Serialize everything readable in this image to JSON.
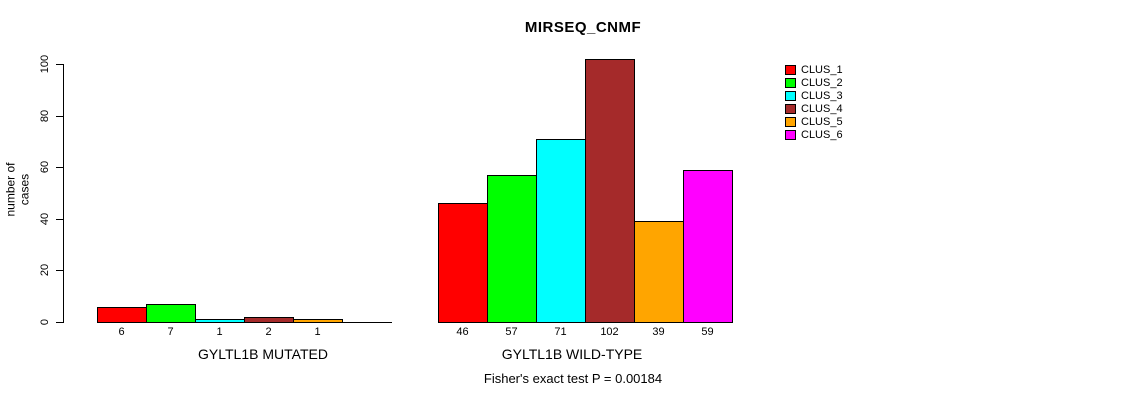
{
  "chart_data": {
    "type": "bar",
    "title": "MIRSEQ_CNMF",
    "ylabel": "number of cases",
    "ylim": [
      0,
      100
    ],
    "yticks": [
      0,
      20,
      40,
      60,
      80,
      100
    ],
    "grid": false,
    "legend_position": "right",
    "legend": [
      {
        "label": "CLUS_1",
        "color": "#FF0000"
      },
      {
        "label": "CLUS_2",
        "color": "#00FF00"
      },
      {
        "label": "CLUS_3",
        "color": "#00FFFF"
      },
      {
        "label": "CLUS_4",
        "color": "#A52A2A"
      },
      {
        "label": "CLUS_5",
        "color": "#FFA500"
      },
      {
        "label": "CLUS_6",
        "color": "#FF00FF"
      }
    ],
    "groups": [
      {
        "label": "GYLTL1B MUTATED",
        "values": [
          6,
          7,
          1,
          2,
          1,
          0
        ],
        "bar_labels": [
          "6",
          "7",
          "1",
          "2",
          "1",
          ""
        ]
      },
      {
        "label": "GYLTL1B WILD-TYPE",
        "values": [
          46,
          57,
          71,
          102,
          39,
          59
        ],
        "bar_labels": [
          "46",
          "57",
          "71",
          "102",
          "39",
          "59"
        ]
      }
    ],
    "annotation": "Fisher's exact test P = 0.00184"
  }
}
